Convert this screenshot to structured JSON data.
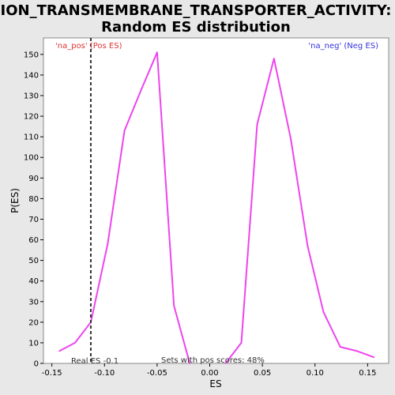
{
  "chart_data": {
    "type": "line",
    "title_line1": "ION_TRANSMEMBRANE_TRANSPORTER_ACTIVITY:",
    "title_line2": "Random ES distribution",
    "xlabel": "ES",
    "ylabel": "P(ES)",
    "xlim": [
      -0.158,
      0.17
    ],
    "ylim": [
      0,
      158
    ],
    "xticks": [
      -0.15,
      -0.1,
      -0.05,
      0.0,
      0.05,
      0.1,
      0.15
    ],
    "xtick_labels": [
      "-0.15",
      "-0.10",
      "-0.05",
      "0.00",
      "0.05",
      "0.10",
      "0.15"
    ],
    "yticks": [
      0,
      10,
      20,
      30,
      40,
      50,
      60,
      70,
      80,
      90,
      100,
      110,
      120,
      130,
      140,
      150
    ],
    "grid": false,
    "series": [
      {
        "color": "#ee44ee",
        "segments": [
          {
            "x": [
              -0.143,
              -0.128,
              -0.113,
              -0.097,
              -0.081,
              -0.065,
              -0.05,
              -0.034,
              -0.019
            ],
            "y": [
              6,
              10,
              20,
              58,
              113,
              133,
              151,
              28,
              0
            ]
          },
          {
            "x": [
              0.015,
              0.03,
              0.045,
              0.061,
              0.077,
              0.093,
              0.108,
              0.124,
              0.14,
              0.156
            ],
            "y": [
              0,
              10,
              116,
              148,
              109,
              57,
              25,
              8,
              6,
              3
            ]
          }
        ]
      }
    ],
    "real_es": -0.113,
    "annotations": {
      "pos_label": "'na_pos' (Pos ES)",
      "neg_label": "'na_neg' (Neg ES)",
      "real_es_label": "Real ES -0.1",
      "sets_label": "Sets with pos scores: 48%"
    },
    "colors": {
      "background": "#e8e8e8",
      "plot_background": "#ffffff",
      "line": "#ee44ee",
      "pos_label": "#dd3333",
      "neg_label": "#3333dd",
      "annotation_text": "#333333"
    }
  }
}
